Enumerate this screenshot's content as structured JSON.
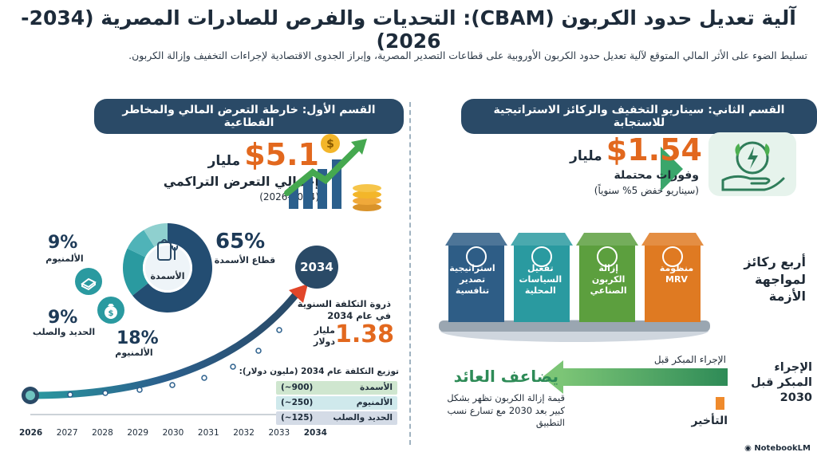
{
  "header": {
    "title": "آلية تعديل حدود الكربون (CBAM): التحديات والفرص للصادرات المصرية (2034-2026)",
    "subtitle": "تسليط الضوء على الأثر المالي المتوقع لآلية تعديل حدود الكربون الأوروبية على قطاعات التصدير المصرية، وإبراز الجدوى الاقتصادية لإجراءات التخفيف وإزالة الكربون."
  },
  "right_section": {
    "banner": "القسم الثاني: سيناريو التخفيف والركائز الاستراتيجية للاستجابة",
    "savings_value": "$1.54",
    "savings_unit": "مليار",
    "savings_label": "وفورات محتملة",
    "savings_note": "(سيناريو خفض 5% سنوياً)",
    "pillars_title": "أربع ركائز لمواجهة الأزمة",
    "pillars": [
      {
        "label": "استراتيجية تصدير تنافسية",
        "color": "#2e5d86"
      },
      {
        "label": "تفعيل السياسات المحلية",
        "color": "#2a9aa0"
      },
      {
        "label": "إزالة الكربون الصناعي",
        "color": "#5c9f3e"
      },
      {
        "label": "منظومة MRV",
        "color": "#df7a22"
      }
    ],
    "early_action_label": "الإجراء المبكر قبل",
    "early_action_side": "الإجراء المبكر قبل 2030",
    "doubles_return": "يضاعف العائد",
    "decarb_note": "قيمة إزالة الكربون تظهر بشكل كبير بعد 2030 مع تسارع نسب التطبيق",
    "delay_label": "التأخير"
  },
  "left_section": {
    "banner": "القسم الأول: خارطة التعرض المالي والمخاطر القطاعية",
    "exposure_value": "$5.1",
    "exposure_unit": "مليار",
    "exposure_label": "إجمالي التعرض التراكمي",
    "exposure_period": "(2026-2034)",
    "donut": {
      "center_label": "الأسمدة",
      "segments": [
        {
          "name": "قطاع الأسمدة",
          "value": 65,
          "color": "#234d72"
        },
        {
          "name": "الألمنيوم",
          "value": 18,
          "color": "#2a9aa0"
        },
        {
          "name": "الحديد والصلب",
          "value": 9,
          "color": "#4fb3b8"
        },
        {
          "name": "الألمنيوم",
          "value": 9,
          "color": "#8fd0cf"
        }
      ],
      "labels": [
        {
          "pct": "65%",
          "name": "قطاع الأسمدة"
        },
        {
          "pct": "9%",
          "name": "الألمنيوم"
        },
        {
          "pct": "9%",
          "name": "الحديد والصلب"
        },
        {
          "pct": "18%",
          "name": "الألمنيوم"
        }
      ]
    },
    "peak_title": "ذروة التكلفة السنوية في عام 2034",
    "peak_value": "1.38",
    "peak_unit": "مليار دولار",
    "end_year_badge": "2034",
    "breakdown_title": "توزيع التكلفة عام 2034 (مليون دولار):",
    "breakdown": [
      {
        "name": "الأسمدة",
        "value": "(~900)",
        "color": "#cfe6cf"
      },
      {
        "name": "الألمنيوم",
        "value": "(~250)",
        "color": "#cfe9ec"
      },
      {
        "name": "الحديد والصلب",
        "value": "(~125)",
        "color": "#d4dbe6"
      }
    ],
    "years": [
      "2026",
      "2027",
      "2028",
      "2029",
      "2030",
      "2031",
      "2032",
      "2033",
      "2034"
    ]
  },
  "footer": {
    "brand": "NotebookLM"
  }
}
